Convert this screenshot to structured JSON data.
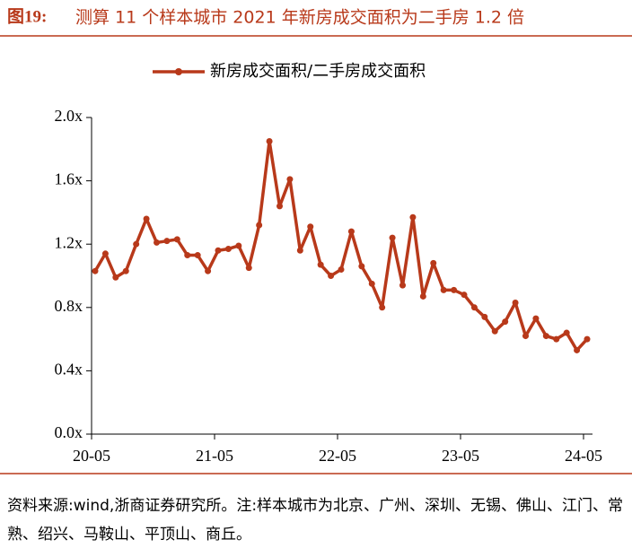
{
  "figure_label": "图19:",
  "source": "资料来源:wind,浙商证券研究所。注:样本城市为北京、广州、深圳、无锡、佛山、江门、常熟、绍兴、马鞍山、平顶山、商丘。",
  "chart_data": {
    "type": "line",
    "title": "测算 11 个样本城市 2021 年新房成交面积为二手房 1.2 倍",
    "categories": [
      "20-05",
      null,
      null,
      null,
      null,
      null,
      null,
      null,
      null,
      null,
      null,
      null,
      "21-05",
      null,
      null,
      null,
      null,
      null,
      null,
      null,
      null,
      null,
      null,
      null,
      "22-05",
      null,
      null,
      null,
      null,
      null,
      null,
      null,
      null,
      null,
      null,
      null,
      "23-05",
      null,
      null,
      null,
      null,
      null,
      null,
      null,
      null,
      null,
      null,
      null,
      "24-05"
    ],
    "series": [
      {
        "name": "新房成交面积/二手房成交面积",
        "color": "#b8391a",
        "values": [
          1.03,
          1.14,
          0.99,
          1.03,
          1.2,
          1.36,
          1.21,
          1.22,
          1.23,
          1.13,
          1.13,
          1.03,
          1.16,
          1.17,
          1.19,
          1.05,
          1.32,
          1.85,
          1.44,
          1.61,
          1.16,
          1.31,
          1.07,
          1.0,
          1.04,
          1.28,
          1.06,
          0.95,
          0.8,
          1.24,
          0.94,
          1.37,
          0.87,
          1.08,
          0.91,
          0.91,
          0.88,
          0.8,
          0.74,
          0.65,
          0.71,
          0.83,
          0.62,
          0.73,
          0.62,
          0.6,
          0.64,
          0.53,
          0.6
        ]
      }
    ],
    "ylim": [
      0,
      2
    ],
    "yticks": [
      {
        "value": 0,
        "label": "0.0x"
      },
      {
        "value": 0.4,
        "label": "0.4x"
      },
      {
        "value": 0.8,
        "label": "0.8x"
      },
      {
        "value": 1.2,
        "label": "1.2x"
      },
      {
        "value": 1.6,
        "label": "1.6x"
      },
      {
        "value": 2,
        "label": "2.0x"
      }
    ],
    "legend": "top"
  }
}
